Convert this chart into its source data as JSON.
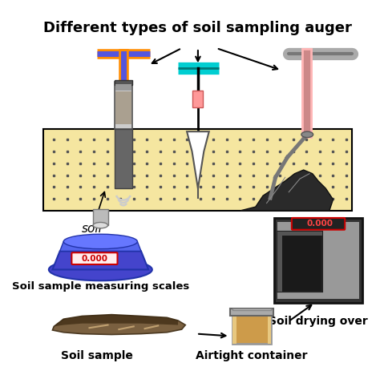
{
  "title": "Different types of soil sampling auger",
  "title_fontsize": 13,
  "title_fontweight": "bold",
  "background_color": "#ffffff",
  "soil_label": "soil",
  "scales_label": "Soil sample measuring scales",
  "sample_label": "Soil sample",
  "container_label": "Airtight container",
  "oven_label": "Soil drying over",
  "display_text": "0.000",
  "soil_bg_color": "#f5e6a0",
  "soil_dot_color": "#555555",
  "auger1_handle_orange": "#FF8C00",
  "auger1_handle_blue": "#5555DD",
  "auger2_handle_color": "#00CED1",
  "auger3_handle_color": "#FFB6B6",
  "scale_body_color": "#4444CC",
  "scale_body_dark": "#2233AA",
  "oven_dark": "#333333",
  "oven_mid": "#888888",
  "oven_light": "#bbbbbb",
  "container_orange": "#D2691E",
  "container_fill": "#CD9B4A"
}
